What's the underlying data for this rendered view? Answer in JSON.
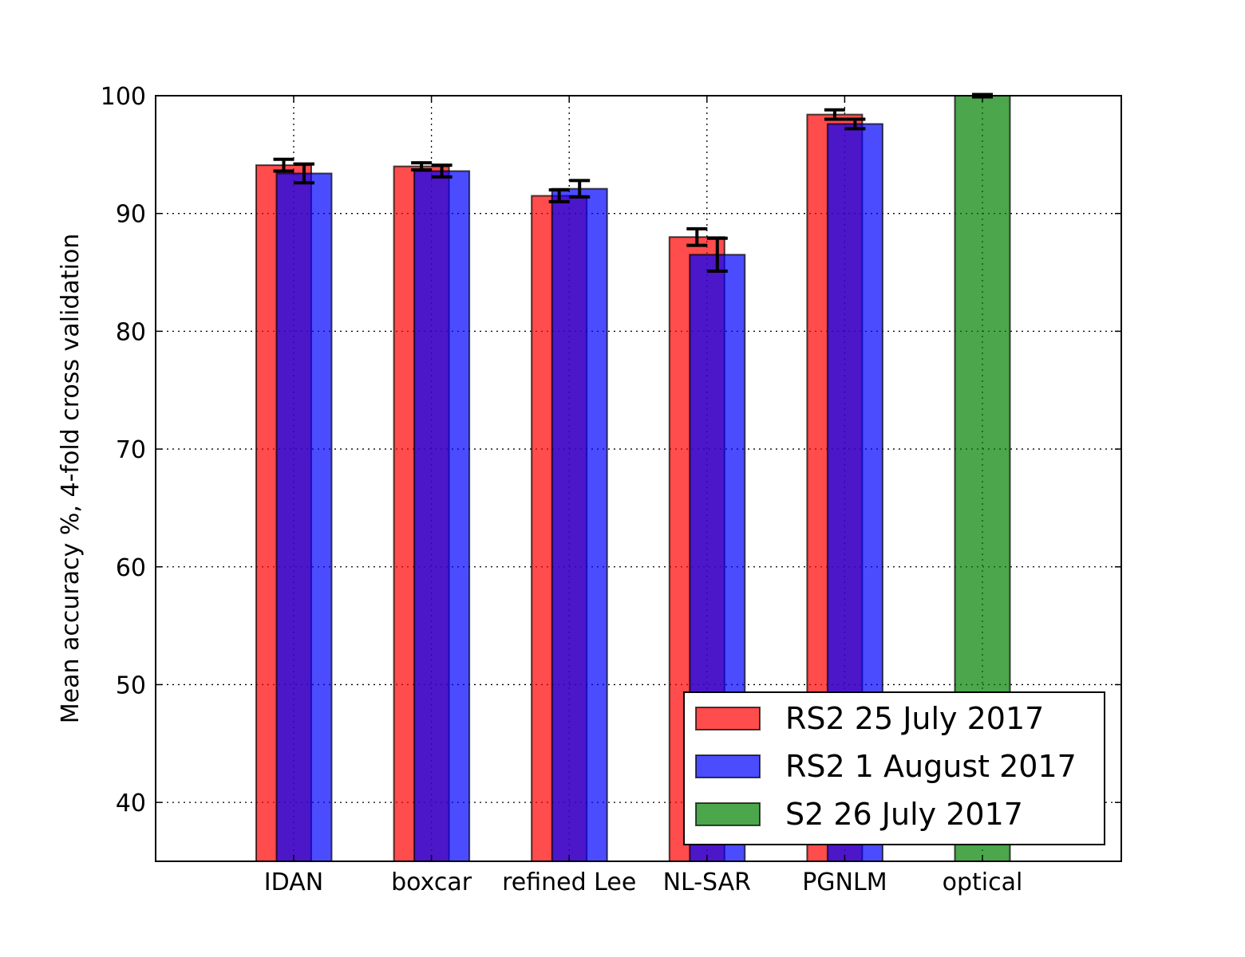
{
  "chart_data": {
    "type": "bar",
    "title": "",
    "xlabel": "",
    "ylabel": "Mean accuracy %, 4-fold cross validation",
    "categories": [
      "IDAN",
      "boxcar",
      "refined Lee",
      "NL-SAR",
      "PGNLM",
      "optical"
    ],
    "ylim": [
      35,
      100
    ],
    "yticks": [
      40,
      50,
      60,
      70,
      80,
      90,
      100
    ],
    "grid": true,
    "legend_position": "lower-right",
    "series": [
      {
        "name": "RS2 25 July 2017",
        "color": "#ff0000",
        "values": [
          94.1,
          94.0,
          91.5,
          88.0,
          98.4,
          null
        ],
        "errors": [
          0.5,
          0.3,
          0.5,
          0.7,
          0.4,
          null
        ]
      },
      {
        "name": "RS2 1 August 2017",
        "color": "#0000ff",
        "values": [
          93.4,
          93.6,
          92.1,
          86.5,
          97.6,
          null
        ],
        "errors": [
          0.8,
          0.5,
          0.7,
          1.4,
          0.4,
          null
        ]
      },
      {
        "name": "S2 26 July 2017",
        "color": "#008000",
        "values": [
          null,
          null,
          null,
          null,
          null,
          100.0
        ],
        "errors": [
          null,
          null,
          null,
          null,
          null,
          0.1
        ]
      }
    ]
  }
}
